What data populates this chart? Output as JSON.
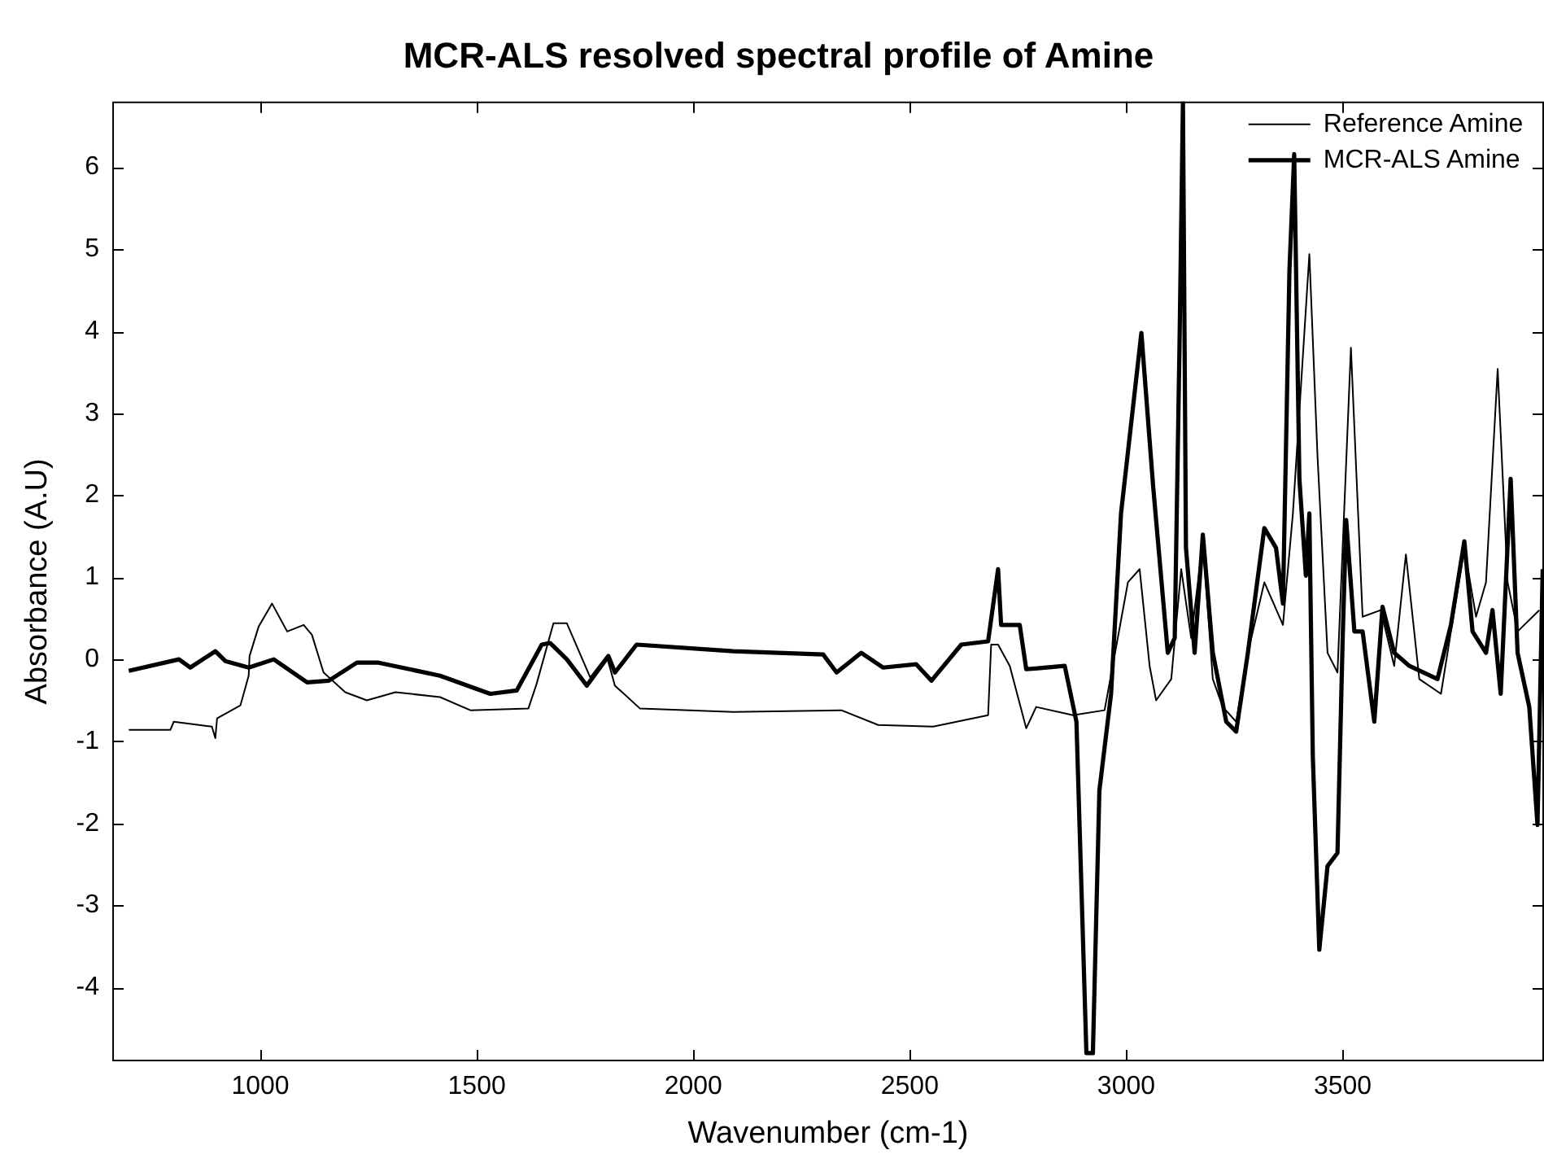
{
  "chart_data": {
    "type": "line",
    "title": "MCR-ALS resolved spectral profile of Amine",
    "xlabel": "Wavenumber (cm-1)",
    "ylabel": "Absorbance (A.U)",
    "xlim": [
      658,
      3965
    ],
    "ylim": [
      -4.9,
      6.8
    ],
    "xticks": [
      1000,
      1500,
      2000,
      2500,
      3000,
      3500
    ],
    "yticks": [
      -4,
      -3,
      -2,
      -1,
      0,
      1,
      2,
      3,
      4,
      5,
      6
    ],
    "grid": false,
    "legend": "top right",
    "marker": "none",
    "line_style": "solid",
    "series": [
      {
        "name": "Reference Amine",
        "color": "#000000",
        "x": [
          696,
          792,
          800,
          888,
          896,
          900,
          954,
          973,
          975,
          996,
          1027,
          1062,
          1100,
          1119,
          1146,
          1196,
          1246,
          1312,
          1415,
          1485,
          1619,
          1638,
          1677,
          1708,
          1762,
          1800,
          1819,
          1877,
          2092,
          2342,
          2427,
          2554,
          2681,
          2688,
          2704,
          2731,
          2769,
          2792,
          2877,
          2950,
          3004,
          3031,
          3054,
          3069,
          3104,
          3127,
          3150,
          3177,
          3200,
          3223,
          3254,
          3281,
          3319,
          3362,
          3385,
          3423,
          3442,
          3465,
          3488,
          3519,
          3546,
          3588,
          3619,
          3646,
          3677,
          3727,
          3781,
          3808,
          3831,
          3858,
          3881,
          3904,
          3954
        ],
        "values": [
          -0.86,
          -0.86,
          -0.76,
          -0.82,
          -0.96,
          -0.72,
          -0.56,
          -0.2,
          0.04,
          0.4,
          0.68,
          0.34,
          0.42,
          0.3,
          -0.16,
          -0.4,
          -0.5,
          -0.4,
          -0.46,
          -0.62,
          -0.6,
          -0.3,
          0.44,
          0.44,
          -0.22,
          0.04,
          -0.32,
          -0.6,
          -0.64,
          -0.62,
          -0.8,
          -0.82,
          -0.68,
          0.18,
          0.18,
          -0.08,
          -0.84,
          -0.58,
          -0.68,
          -0.62,
          0.94,
          1.1,
          -0.08,
          -0.5,
          -0.24,
          1.1,
          0.26,
          1.44,
          -0.24,
          -0.58,
          -0.76,
          0.08,
          0.94,
          0.42,
          1.78,
          4.94,
          2.46,
          0.08,
          -0.16,
          3.8,
          0.52,
          0.6,
          -0.08,
          1.28,
          -0.24,
          -0.42,
          1.36,
          0.52,
          0.94,
          3.54,
          0.94,
          0.34,
          0.6
        ]
      },
      {
        "name": "MCR-ALS Amine",
        "color": "#000000",
        "x": [
          696,
          812,
          838,
          896,
          919,
          973,
          1031,
          1108,
          1158,
          1223,
          1273,
          1415,
          1531,
          1592,
          1650,
          1669,
          1708,
          1754,
          1804,
          1819,
          1869,
          2092,
          2300,
          2331,
          2388,
          2438,
          2515,
          2550,
          2619,
          2681,
          2704,
          2711,
          2754,
          2769,
          2858,
          2885,
          2908,
          2923,
          2938,
          2965,
          2988,
          3035,
          3062,
          3096,
          3112,
          3123,
          3131,
          3138,
          3158,
          3177,
          3200,
          3231,
          3254,
          3281,
          3319,
          3346,
          3362,
          3377,
          3388,
          3400,
          3415,
          3423,
          3431,
          3446,
          3465,
          3488,
          3500,
          3508,
          3527,
          3546,
          3573,
          3592,
          3619,
          3654,
          3719,
          3750,
          3781,
          3800,
          3831,
          3846,
          3865,
          3888,
          3904,
          3931,
          3950,
          3962
        ],
        "values": [
          -0.14,
          0,
          -0.1,
          0.1,
          -0.02,
          -0.1,
          0,
          -0.28,
          -0.26,
          -0.04,
          -0.04,
          -0.2,
          -0.42,
          -0.38,
          0.18,
          0.2,
          0,
          -0.32,
          0.04,
          -0.16,
          0.18,
          0.1,
          0.06,
          -0.16,
          0.08,
          -0.1,
          -0.06,
          -0.26,
          0.18,
          0.22,
          1.1,
          0.42,
          0.42,
          -0.12,
          -0.08,
          -0.76,
          -4.8,
          -4.8,
          -1.6,
          -0.42,
          1.78,
          3.98,
          2.12,
          0.08,
          0.26,
          3.8,
          6.8,
          1.36,
          0.08,
          1.52,
          0.08,
          -0.76,
          -0.88,
          0.08,
          1.6,
          1.36,
          0.68,
          4.74,
          6.16,
          2.2,
          1.02,
          1.78,
          -1.18,
          -3.54,
          -2.52,
          -2.36,
          0.26,
          1.7,
          0.34,
          0.34,
          -0.76,
          0.64,
          0.08,
          -0.08,
          -0.24,
          0.42,
          1.44,
          0.34,
          0.08,
          0.6,
          -0.42,
          2.2,
          0.08,
          -0.58,
          -2.02,
          1.1
        ]
      }
    ]
  }
}
